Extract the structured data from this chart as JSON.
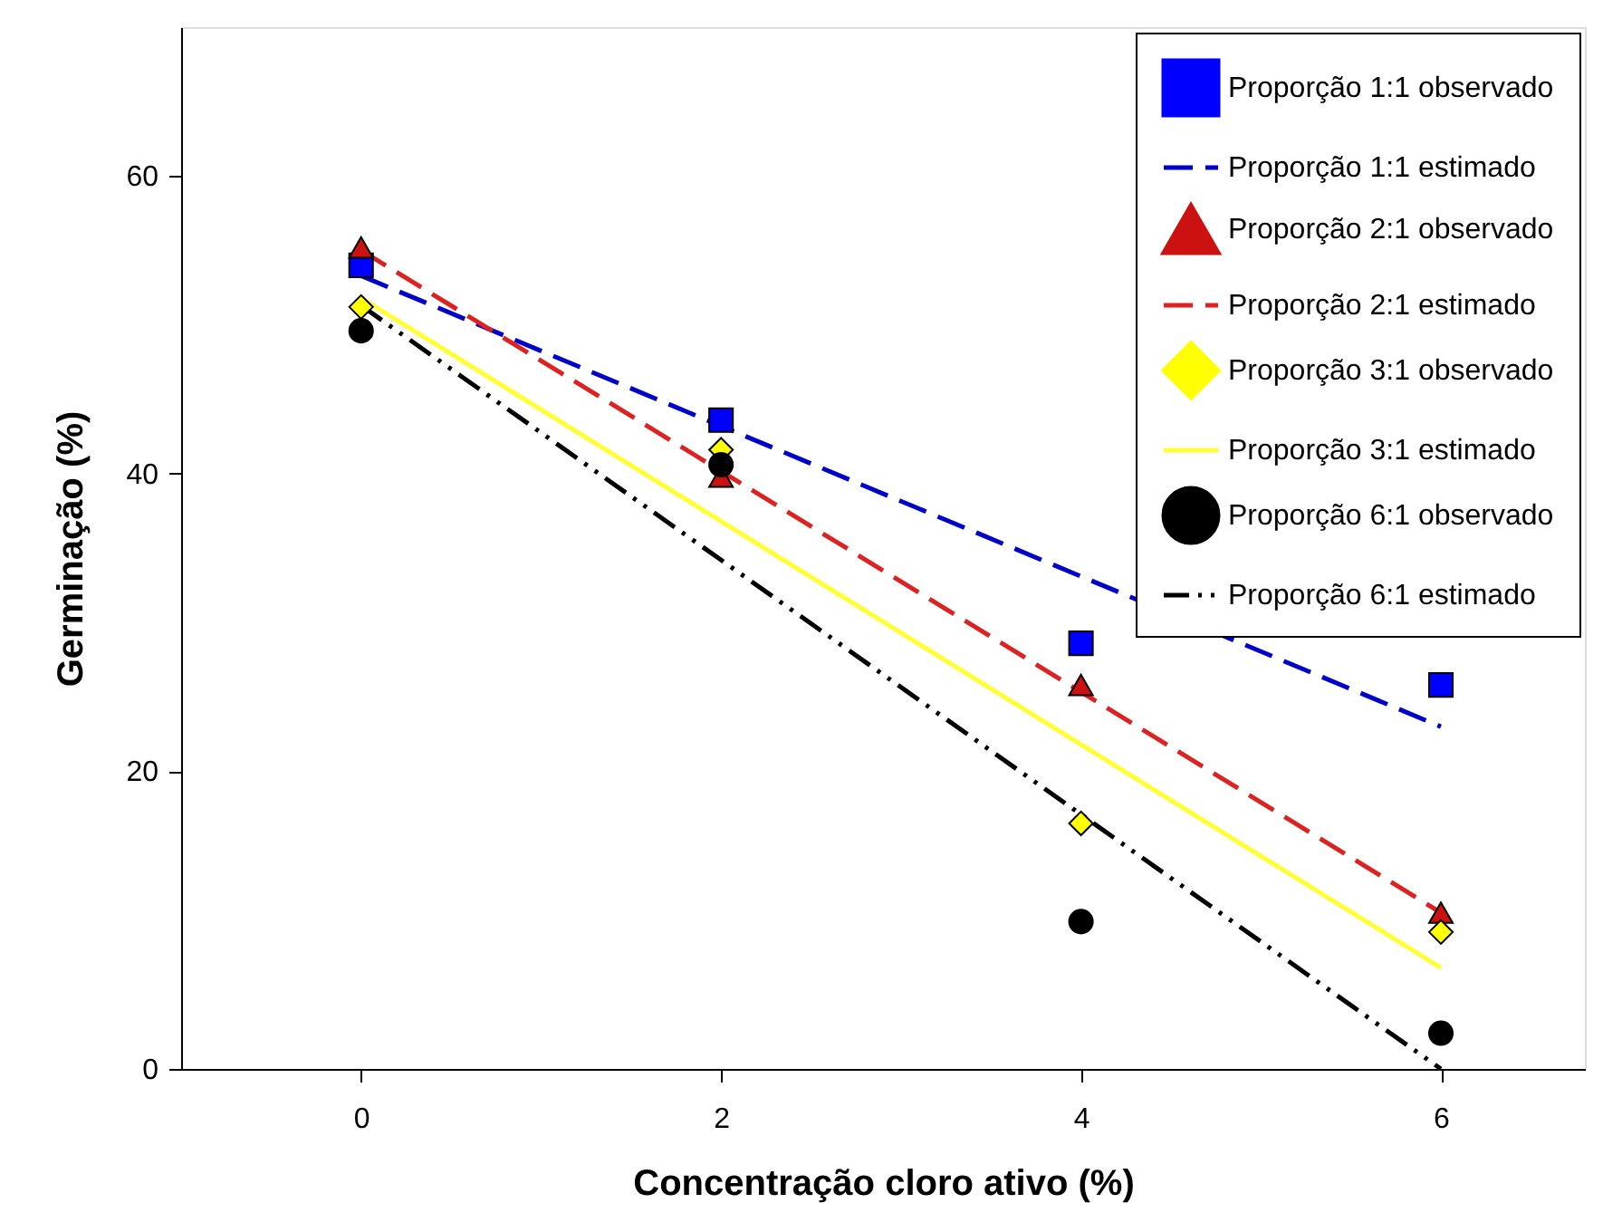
{
  "chart_data": {
    "type": "scatter",
    "xlabel": "Concentração cloro ativo (%)",
    "ylabel": "Germinação (%)",
    "xlim": [
      -1,
      6.8
    ],
    "ylim": [
      0,
      70
    ],
    "xticks": [
      0,
      2,
      4,
      6
    ],
    "yticks": [
      0,
      20,
      40,
      60
    ],
    "grid": false,
    "legend": "top right",
    "series": [
      {
        "name": "Proporção 1:1 observado",
        "marker": "square",
        "color": "#0000ff",
        "x": [
          0,
          2,
          4,
          6
        ],
        "values": [
          54.0,
          43.6,
          28.6,
          25.8
        ]
      },
      {
        "name": "Proporção 1:1 estimado",
        "type": "line",
        "line_style": "dashed",
        "color": "#0000cc",
        "x": [
          0,
          6
        ],
        "values": [
          53.3,
          23.0
        ]
      },
      {
        "name": "Proporção 2:1 observado",
        "marker": "triangle",
        "color": "#cc1111",
        "x": [
          0,
          2,
          4,
          6
        ],
        "values": [
          55.2,
          39.8,
          25.8,
          10.5
        ]
      },
      {
        "name": "Proporção 2:1 estimado",
        "type": "line",
        "line_style": "dashed",
        "color": "#dd2222",
        "x": [
          0,
          6
        ],
        "values": [
          55.0,
          10.5
        ]
      },
      {
        "name": "Proporção 3:1 observado",
        "marker": "diamond",
        "color": "#ffff00",
        "x": [
          0,
          2,
          4,
          6
        ],
        "values": [
          51.2,
          41.6,
          16.5,
          9.2
        ]
      },
      {
        "name": "Proporção 3:1  estimado",
        "type": "line",
        "line_style": "solid",
        "color": "#ffff33",
        "x": [
          0,
          6
        ],
        "values": [
          51.8,
          6.8
        ]
      },
      {
        "name": "Proporção 6:1 observado",
        "marker": "circle",
        "color": "#000000",
        "x": [
          0,
          2,
          4,
          6
        ],
        "values": [
          49.6,
          40.6,
          9.9,
          2.4
        ]
      },
      {
        "name": "Proporção 6:1 estimado",
        "type": "line",
        "line_style": "dotted",
        "color": "#000000",
        "x": [
          0,
          6
        ],
        "values": [
          51.3,
          0
        ]
      }
    ]
  }
}
